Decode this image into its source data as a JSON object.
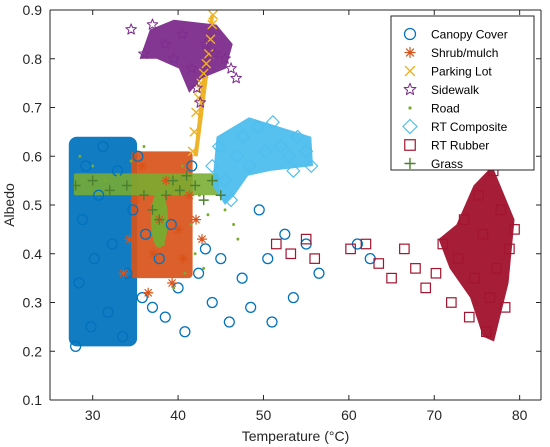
{
  "chart_data": {
    "type": "scatter",
    "title": "",
    "xlabel": "Temperature (°C)",
    "ylabel": "Albedo",
    "xlim": [
      25,
      82.5
    ],
    "ylim": [
      0.1,
      0.9
    ],
    "xticks": [
      30,
      40,
      50,
      60,
      70,
      80
    ],
    "yticks": [
      0.1,
      0.2,
      0.3,
      0.4,
      0.5,
      0.6,
      0.7,
      0.8,
      0.9
    ],
    "legend_position": "top-right",
    "grid": false,
    "series": [
      {
        "name": "Canopy Cover",
        "marker": "circle",
        "color": "#0072BD",
        "points": [
          [
            28.0,
            0.21
          ],
          [
            28.4,
            0.34
          ],
          [
            28.8,
            0.47
          ],
          [
            29.2,
            0.58
          ],
          [
            29.8,
            0.25
          ],
          [
            30.2,
            0.39
          ],
          [
            30.7,
            0.52
          ],
          [
            31.2,
            0.62
          ],
          [
            31.8,
            0.28
          ],
          [
            32.3,
            0.42
          ],
          [
            32.9,
            0.57
          ],
          [
            33.5,
            0.23
          ],
          [
            34.0,
            0.36
          ],
          [
            34.7,
            0.49
          ],
          [
            35.3,
            0.6
          ],
          [
            35.8,
            0.31
          ],
          [
            36.2,
            0.44
          ],
          [
            37.0,
            0.29
          ],
          [
            37.8,
            0.39
          ],
          [
            38.5,
            0.27
          ],
          [
            39.2,
            0.46
          ],
          [
            40.0,
            0.33
          ],
          [
            40.8,
            0.24
          ],
          [
            41.6,
            0.58
          ],
          [
            42.4,
            0.36
          ],
          [
            43.2,
            0.41
          ],
          [
            44.0,
            0.3
          ],
          [
            45.0,
            0.39
          ],
          [
            46.0,
            0.26
          ],
          [
            47.5,
            0.35
          ],
          [
            48.5,
            0.29
          ],
          [
            49.5,
            0.49
          ],
          [
            50.5,
            0.39
          ],
          [
            51.0,
            0.26
          ],
          [
            52.5,
            0.44
          ],
          [
            53.5,
            0.31
          ],
          [
            55.0,
            0.42
          ],
          [
            56.5,
            0.36
          ],
          [
            61.0,
            0.42
          ],
          [
            62.5,
            0.39
          ]
        ]
      },
      {
        "name": "Shrub/mulch",
        "marker": "asterisk",
        "color": "#D95319",
        "points": [
          [
            33.6,
            0.36
          ],
          [
            34.3,
            0.43
          ],
          [
            35.0,
            0.51
          ],
          [
            35.8,
            0.58
          ],
          [
            36.5,
            0.32
          ],
          [
            37.1,
            0.4
          ],
          [
            37.8,
            0.47
          ],
          [
            38.6,
            0.55
          ],
          [
            39.3,
            0.34
          ],
          [
            40.0,
            0.45
          ],
          [
            40.6,
            0.39
          ],
          [
            41.3,
            0.52
          ],
          [
            42.1,
            0.47
          ],
          [
            42.8,
            0.43
          ]
        ]
      },
      {
        "name": "Parking Lot",
        "marker": "x",
        "color": "#EDB120",
        "points": [
          [
            41.7,
            0.61
          ],
          [
            41.9,
            0.65
          ],
          [
            42.1,
            0.69
          ],
          [
            42.4,
            0.72
          ],
          [
            42.7,
            0.75
          ],
          [
            43.0,
            0.77
          ],
          [
            43.3,
            0.79
          ],
          [
            43.6,
            0.81
          ],
          [
            43.8,
            0.84
          ],
          [
            44.0,
            0.87
          ],
          [
            44.1,
            0.89
          ],
          [
            42.6,
            0.74
          ]
        ]
      },
      {
        "name": "Sidewalk",
        "marker": "pentagram",
        "color": "#7E2F8E",
        "points": [
          [
            34.5,
            0.86
          ],
          [
            36.0,
            0.81
          ],
          [
            37.0,
            0.87
          ],
          [
            38.5,
            0.83
          ],
          [
            39.5,
            0.8
          ],
          [
            40.5,
            0.85
          ],
          [
            41.6,
            0.78
          ],
          [
            42.2,
            0.74
          ],
          [
            42.6,
            0.71
          ],
          [
            43.2,
            0.83
          ],
          [
            44.3,
            0.81
          ],
          [
            45.5,
            0.8
          ],
          [
            46.2,
            0.78
          ],
          [
            46.8,
            0.76
          ]
        ]
      },
      {
        "name": "Road",
        "marker": "point",
        "color": "#77AC30",
        "points": [
          [
            28.5,
            0.6
          ],
          [
            30.0,
            0.58
          ],
          [
            31.5,
            0.55
          ],
          [
            33.0,
            0.56
          ],
          [
            34.5,
            0.59
          ],
          [
            36.0,
            0.62
          ],
          [
            37.0,
            0.5
          ],
          [
            37.7,
            0.45
          ],
          [
            38.3,
            0.42
          ],
          [
            39.0,
            0.53
          ],
          [
            40.5,
            0.58
          ],
          [
            41.5,
            0.46
          ],
          [
            42.5,
            0.52
          ],
          [
            43.5,
            0.48
          ],
          [
            44.5,
            0.55
          ],
          [
            45.5,
            0.49
          ],
          [
            46.5,
            0.46
          ],
          [
            47.0,
            0.43
          ],
          [
            39.5,
            0.33
          ],
          [
            40.8,
            0.36
          ],
          [
            42.0,
            0.4
          ],
          [
            43.0,
            0.37
          ]
        ]
      },
      {
        "name": "RT Composite",
        "marker": "diamond",
        "color": "#4DBEEE",
        "points": [
          [
            44.0,
            0.58
          ],
          [
            44.8,
            0.62
          ],
          [
            45.5,
            0.55
          ],
          [
            46.2,
            0.51
          ],
          [
            46.9,
            0.6
          ],
          [
            47.6,
            0.64
          ],
          [
            48.4,
            0.58
          ],
          [
            49.3,
            0.66
          ],
          [
            50.2,
            0.61
          ],
          [
            51.1,
            0.67
          ],
          [
            52.0,
            0.62
          ],
          [
            53.0,
            0.6
          ],
          [
            54.0,
            0.64
          ],
          [
            55.0,
            0.61
          ],
          [
            55.6,
            0.58
          ],
          [
            53.5,
            0.57
          ]
        ]
      },
      {
        "name": "RT Rubber",
        "marker": "square",
        "color": "#A2142F",
        "points": [
          [
            51.5,
            0.42
          ],
          [
            53.2,
            0.4
          ],
          [
            55.0,
            0.43
          ],
          [
            56.0,
            0.39
          ],
          [
            60.2,
            0.41
          ],
          [
            62.0,
            0.42
          ],
          [
            63.5,
            0.38
          ],
          [
            65.0,
            0.35
          ],
          [
            66.5,
            0.41
          ],
          [
            67.8,
            0.37
          ],
          [
            69.0,
            0.33
          ],
          [
            70.2,
            0.36
          ],
          [
            71.0,
            0.42
          ],
          [
            72.0,
            0.3
          ],
          [
            72.8,
            0.39
          ],
          [
            73.5,
            0.47
          ],
          [
            74.1,
            0.27
          ],
          [
            74.7,
            0.35
          ],
          [
            75.2,
            0.52
          ],
          [
            75.7,
            0.44
          ],
          [
            76.1,
            0.24
          ],
          [
            76.5,
            0.31
          ],
          [
            76.9,
            0.57
          ],
          [
            77.3,
            0.37
          ],
          [
            77.8,
            0.49
          ],
          [
            78.3,
            0.29
          ],
          [
            78.8,
            0.41
          ],
          [
            79.4,
            0.45
          ]
        ]
      },
      {
        "name": "Grass",
        "marker": "plus",
        "color": "#4C7F2F",
        "points": [
          [
            28.0,
            0.54
          ],
          [
            30.0,
            0.55
          ],
          [
            32.0,
            0.53
          ],
          [
            34.0,
            0.54
          ],
          [
            36.0,
            0.52
          ],
          [
            37.0,
            0.49
          ],
          [
            37.8,
            0.47
          ],
          [
            38.6,
            0.52
          ],
          [
            39.4,
            0.55
          ],
          [
            40.2,
            0.53
          ],
          [
            41.0,
            0.56
          ],
          [
            42.0,
            0.54
          ],
          [
            43.0,
            0.51
          ],
          [
            44.0,
            0.55
          ],
          [
            45.0,
            0.52
          ]
        ]
      }
    ]
  },
  "colors": {
    "axis": "#262626",
    "legend_border": "#262626",
    "background": "#ffffff"
  }
}
